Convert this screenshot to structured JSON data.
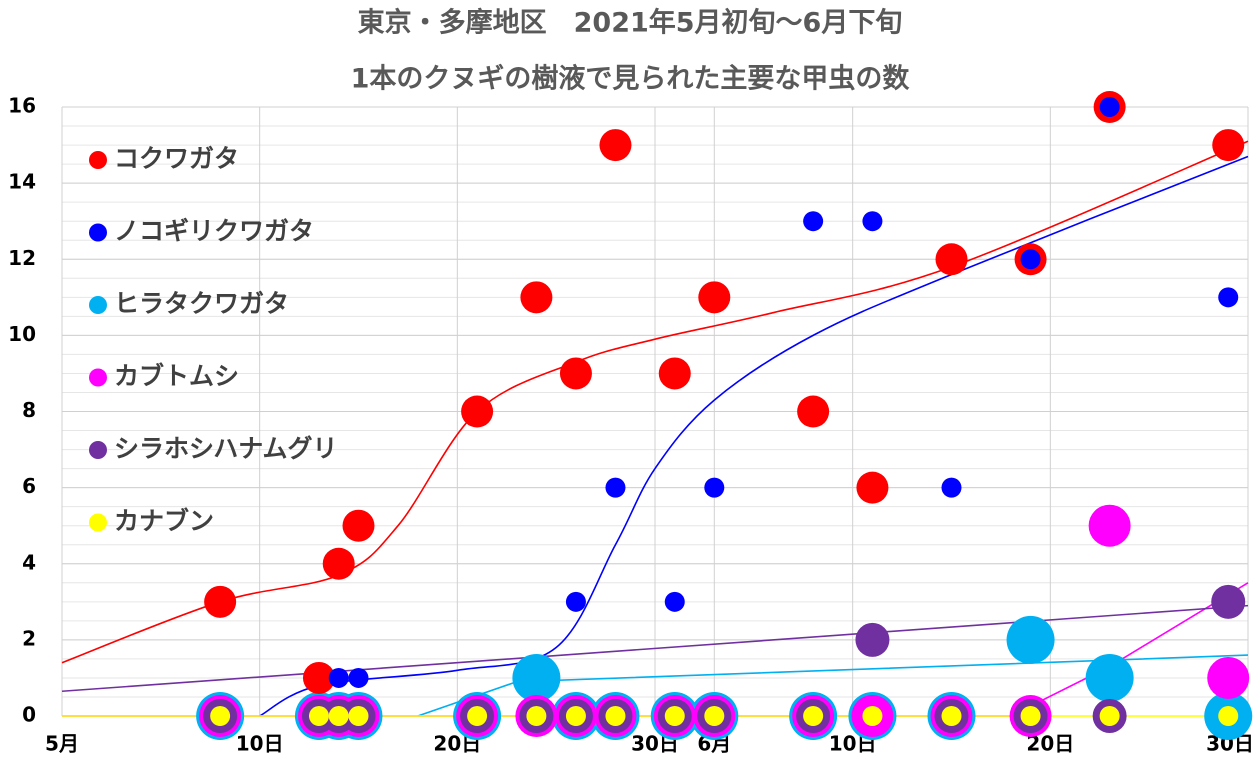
{
  "chart_data": {
    "type": "scatter",
    "title": "東京・多摩地区　2021年5月初旬～6月下旬",
    "subtitle": "1本のクヌギの樹液で見られた主要な甲虫の数",
    "x": [
      8,
      13,
      14,
      15,
      21,
      24,
      26,
      28,
      31,
      33,
      38,
      41,
      45,
      49,
      53,
      59
    ],
    "xlim": [
      0,
      60
    ],
    "xticks": [
      {
        "value": 0,
        "label": "5月"
      },
      {
        "value": 10,
        "label": "10日"
      },
      {
        "value": 20,
        "label": "20日"
      },
      {
        "value": 30,
        "label": "30日"
      },
      {
        "value": 33,
        "label": "6月"
      },
      {
        "value": 40,
        "label": "10日"
      },
      {
        "value": 50,
        "label": "20日"
      },
      {
        "value": 60,
        "label": "30日"
      }
    ],
    "ylim": [
      0,
      16
    ],
    "yticks": [
      0,
      2,
      4,
      6,
      8,
      10,
      12,
      14,
      16
    ],
    "grid": true,
    "legend": "upper-left",
    "series": [
      {
        "name": "コクワガタ",
        "color": "#ff0000",
        "values": [
          3,
          1,
          4,
          5,
          8,
          11,
          9,
          15,
          9,
          11,
          8,
          6,
          12,
          12,
          16,
          15
        ],
        "trend_x": [
          0,
          8,
          14,
          17,
          21,
          26,
          30,
          36,
          45,
          60
        ],
        "trend_y": [
          1.4,
          3,
          3.7,
          5,
          8,
          9.3,
          9.9,
          10.6,
          11.8,
          15.1
        ],
        "smooth": true
      },
      {
        "name": "ノコギリクワガタ",
        "color": "#0000ff",
        "values": [
          0,
          0,
          1,
          1,
          0,
          0,
          3,
          6,
          3,
          6,
          13,
          13,
          6,
          12,
          16,
          11
        ],
        "trend_x": [
          10,
          13,
          20,
          25,
          28,
          30,
          33,
          38,
          45,
          60
        ],
        "trend_y": [
          0,
          0.8,
          1.2,
          1.8,
          4.5,
          6.5,
          8.3,
          10,
          11.6,
          14.7
        ],
        "smooth": true
      },
      {
        "name": "ヒラタクワガタ",
        "color": "#00b0f0",
        "values": [
          0,
          0,
          0,
          0,
          0,
          1,
          0,
          0,
          0,
          0,
          0,
          0,
          0,
          2,
          1,
          0
        ],
        "trend_x": [
          18,
          23,
          60
        ],
        "trend_y": [
          0,
          0.9,
          1.6
        ],
        "smooth": false
      },
      {
        "name": "カブトムシ",
        "color": "#ff00ff",
        "values": [
          0,
          0,
          0,
          0,
          0,
          0,
          0,
          0,
          0,
          0,
          0,
          0,
          0,
          0,
          5,
          1
        ],
        "trend_x": [
          0,
          48,
          53,
          60
        ],
        "trend_y": [
          0,
          0,
          1.3,
          3.5
        ],
        "smooth": false
      },
      {
        "name": "シラホシハナムグリ",
        "color": "#7030a0",
        "values": [
          0,
          0,
          0,
          0,
          0,
          0,
          0,
          0,
          0,
          0,
          0,
          2,
          0,
          0,
          0,
          3
        ],
        "trend_x": [
          0,
          60
        ],
        "trend_y": [
          0.65,
          2.9
        ],
        "smooth": false
      },
      {
        "name": "カナブン",
        "color": "#ffff00",
        "values": [
          0,
          0,
          0,
          0,
          0,
          0,
          0,
          0,
          0,
          0,
          0,
          0,
          0,
          0,
          0,
          0
        ],
        "trend_x": [
          0,
          60
        ],
        "trend_y": [
          0,
          0
        ],
        "smooth": false
      }
    ]
  }
}
